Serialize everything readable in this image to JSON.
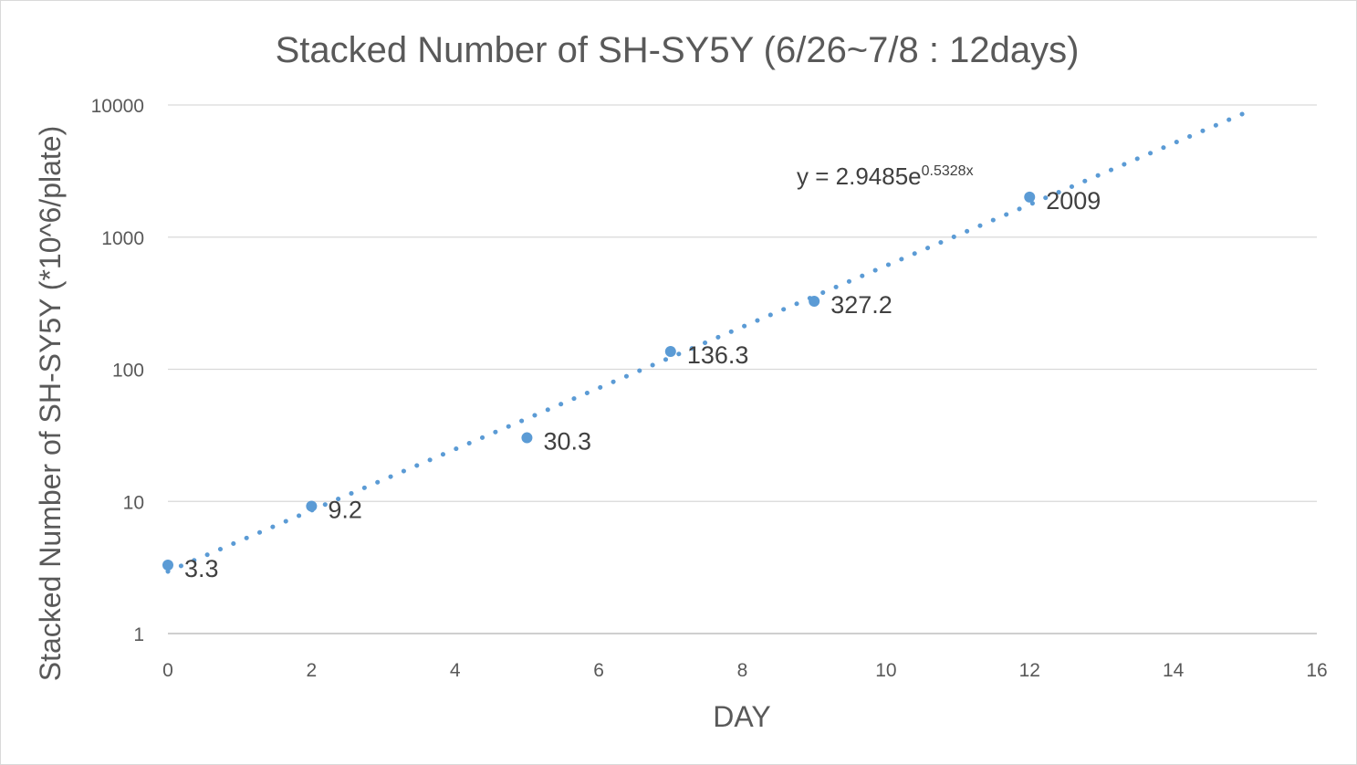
{
  "chart_data": {
    "type": "scatter",
    "title": "Stacked Number of SH-SY5Y (6/26~7/8 : 12days)",
    "xlabel": "DAY",
    "ylabel": "Stacked Number of SH-SY5Y (*10^6/plate)",
    "xlim": [
      0,
      16
    ],
    "ylim": [
      1,
      10000
    ],
    "yscale": "log",
    "grid": "horizontal",
    "x_ticks": [
      "0",
      "2",
      "4",
      "6",
      "8",
      "10",
      "12",
      "14",
      "16"
    ],
    "y_ticks": [
      "1",
      "10",
      "100",
      "1000",
      "10000"
    ],
    "series": [
      {
        "x": [
          0,
          2,
          5,
          7,
          9,
          12
        ],
        "y": [
          3.3,
          9.2,
          30.3,
          136.3,
          327.2,
          2009
        ],
        "labels": [
          "3.3",
          "9.2",
          "30.3",
          "136.3",
          "327.2",
          "2009"
        ]
      }
    ],
    "trendline": {
      "type": "exponential",
      "a": 2.9485,
      "b": 0.5328,
      "x_range": [
        0,
        15
      ],
      "style": "dotted",
      "equation_text": "y = 2.9485e",
      "equation_exponent": "0.5328x"
    },
    "colors": {
      "marker": "#5b9bd5",
      "grid": "#d9d9d9",
      "axis": "#bfbfbf",
      "text": "#595959"
    }
  }
}
